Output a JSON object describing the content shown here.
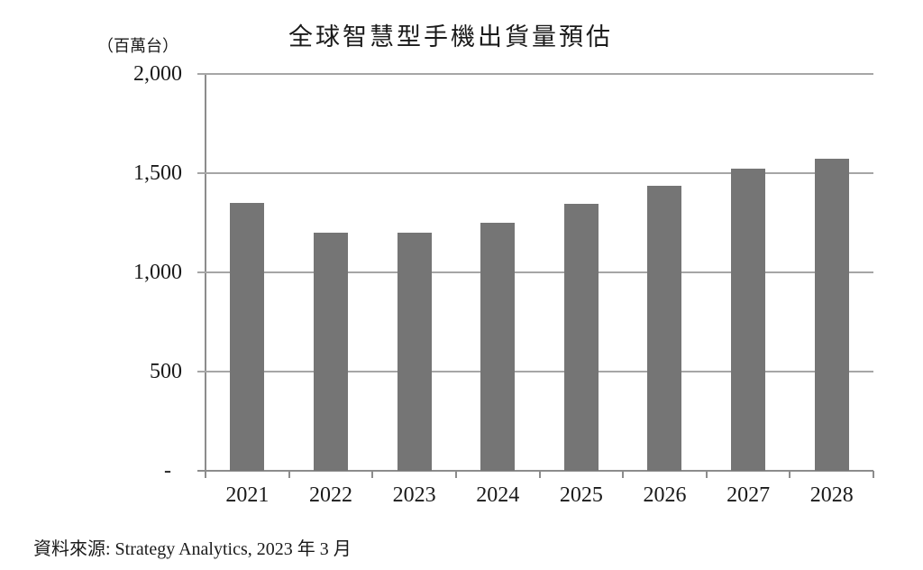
{
  "chart_data": {
    "type": "bar",
    "title": "全球智慧型手機出貨量預估",
    "unit_label": "（百萬台）",
    "categories": [
      "2021",
      "2022",
      "2023",
      "2024",
      "2025",
      "2026",
      "2027",
      "2028"
    ],
    "values": [
      1350,
      1200,
      1200,
      1250,
      1345,
      1435,
      1525,
      1575
    ],
    "xlabel": "",
    "ylabel": "百萬台",
    "ylim": [
      0,
      2000
    ],
    "yticks": [
      0,
      500,
      1000,
      1500,
      2000
    ],
    "ytick_labels": [
      "-",
      "500",
      "1,000",
      "1,500",
      "2,000"
    ],
    "grid": true,
    "legend_position": "none",
    "bar_color": "#757575",
    "grid_color": "#a6a6a6",
    "axis_color": "#8c8c8c",
    "text_color": "#1a1a1a"
  },
  "source_note": "資料來源: Strategy Analytics, 2023 年 3 月"
}
